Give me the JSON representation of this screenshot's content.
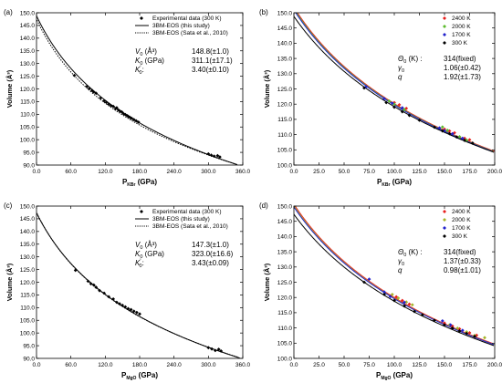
{
  "chart_data": [
    {
      "panel_label": "(a)",
      "type": "scatter",
      "xlabel": {
        "main": "P",
        "sub": "KBr",
        "unit": " (GPa)"
      },
      "ylabel": "Volume (Å³)",
      "xlim": [
        0,
        360
      ],
      "ylim": [
        90,
        150
      ],
      "xticks": [
        0,
        60,
        120,
        180,
        240,
        300,
        360
      ],
      "xtick_labels": [
        "0.0",
        "60.0",
        "120.0",
        "180.0",
        "240.0",
        "300.0",
        "360.0"
      ],
      "yticks": [
        90,
        95,
        100,
        105,
        110,
        115,
        120,
        125,
        130,
        135,
        140,
        145,
        150
      ],
      "ytick_labels": [
        "90.0",
        "95.0",
        "100.0",
        "105.0",
        "110.0",
        "115.0",
        "120.0",
        "125.0",
        "130.0",
        "135.0",
        "140.0",
        "145.0",
        "150.0"
      ],
      "legend": {
        "position": "top-right",
        "entries": [
          {
            "style": "diamond",
            "label": "Experimental data (300 K)"
          },
          {
            "style": "solid",
            "label": "3BM-EOS (this study)"
          },
          {
            "style": "dotted",
            "label": "3BM-EOS (Sata et al., 2010)"
          }
        ]
      },
      "params": [
        {
          "name": "V",
          "sub": "0",
          "sup": "",
          "unit": " (Å³)",
          "value": "148.8(±1.0)"
        },
        {
          "name": "K",
          "sub": "0",
          "sup": "",
          "unit": " (GPa)",
          "value": "311.1(±17.1)"
        },
        {
          "name": "K",
          "sub": "0",
          "sup": "'",
          "unit": "",
          "value": "3.40(±0.10)"
        }
      ],
      "curves": [
        {
          "style": "solid",
          "color": "#000000",
          "V0": 148.8,
          "K0": 311.1,
          "K1": 3.4,
          "xmax": 355
        },
        {
          "style": "dotted",
          "color": "#000000",
          "V0": 147.5,
          "K0": 300,
          "K1": 3.6,
          "xmax": 355
        }
      ],
      "series": [
        {
          "marker": "diamond",
          "color": "#000000",
          "x": [
            66,
            88,
            92,
            97,
            100,
            104,
            112,
            118,
            122,
            126,
            130,
            134,
            138,
            140,
            143,
            146,
            149,
            152,
            155,
            158,
            160,
            163,
            166,
            170,
            174,
            178,
            300,
            305,
            310,
            316,
            320
          ],
          "y": [
            125.3,
            121.0,
            120.1,
            119.4,
            118.8,
            118.3,
            116.4,
            115.3,
            114.7,
            114.0,
            113.4,
            113.1,
            112.2,
            112.6,
            111.7,
            111.2,
            110.9,
            110.2,
            109.9,
            109.5,
            109.2,
            108.8,
            108.4,
            107.9,
            107.4,
            106.9,
            94.4,
            93.9,
            93.5,
            93.7,
            93.2
          ]
        }
      ]
    },
    {
      "panel_label": "(b)",
      "type": "scatter",
      "xlabel": {
        "main": "P",
        "sub": "KBr",
        "unit": " (GPa)"
      },
      "ylabel": "Volume (Å³)",
      "xlim": [
        0,
        200
      ],
      "ylim": [
        100,
        150
      ],
      "xticks": [
        0,
        25,
        50,
        75,
        100,
        125,
        150,
        175,
        200
      ],
      "xtick_labels": [
        "0.0",
        "25.0",
        "50.0",
        "75.0",
        "100.0",
        "125.0",
        "150.0",
        "175.0",
        "200.0"
      ],
      "yticks": [
        100,
        105,
        110,
        115,
        120,
        125,
        130,
        135,
        140,
        145,
        150
      ],
      "ytick_labels": [
        "100.0",
        "105.0",
        "110.0",
        "115.0",
        "120.0",
        "125.0",
        "130.0",
        "135.0",
        "140.0",
        "145.0",
        "150.0"
      ],
      "legend": {
        "position": "top-right",
        "entries": [
          {
            "style": "diamond",
            "color": "#e8201e",
            "label": "2400 K"
          },
          {
            "style": "diamond",
            "color": "#5dbb2e",
            "label": "2000 K"
          },
          {
            "style": "diamond",
            "color": "#2222cc",
            "label": "1700 K"
          },
          {
            "style": "diamond",
            "color": "#000000",
            "label": "300 K"
          }
        ]
      },
      "params": [
        {
          "name": "Θ",
          "sub": "0",
          "sup": "",
          "unit": " (K) :",
          "value": "314(fixed)"
        },
        {
          "name": "γ",
          "sub": "0",
          "sup": "",
          "unit": "",
          "value": "1.06(±0.42)"
        },
        {
          "name": "q",
          "sub": "",
          "sup": "",
          "unit": "",
          "value": "1.92(±1.73)"
        }
      ],
      "curves": [
        {
          "style": "solid",
          "color": "#e8201e",
          "V0": 151.8,
          "K0": 290,
          "K1": 3.4,
          "xmax": 200
        },
        {
          "style": "solid",
          "color": "#5dbb2e",
          "V0": 151.3,
          "K0": 292,
          "K1": 3.4,
          "xmax": 200
        },
        {
          "style": "solid",
          "color": "#2222cc",
          "V0": 150.9,
          "K0": 294,
          "K1": 3.4,
          "xmax": 200
        },
        {
          "style": "solid",
          "color": "#000000",
          "V0": 148.8,
          "K0": 311.1,
          "K1": 3.4,
          "xmax": 200
        }
      ],
      "series": [
        {
          "name": "2400 K",
          "marker": "diamond",
          "color": "#e8201e",
          "x": [
            100,
            105,
            112,
            150,
            155,
            160,
            170,
            175
          ],
          "y": [
            120.5,
            119.8,
            118.6,
            111.8,
            111.2,
            110.6,
            108.8,
            108.3
          ]
        },
        {
          "name": "2000 K",
          "marker": "diamond",
          "color": "#5dbb2e",
          "x": [
            95,
            100,
            110,
            148,
            153,
            165,
            172
          ],
          "y": [
            121.0,
            120.0,
            118.2,
            112.5,
            111.4,
            109.3,
            108.2
          ]
        },
        {
          "name": "1700 K",
          "marker": "diamond",
          "color": "#2222cc",
          "x": [
            72,
            90,
            98,
            108,
            145,
            150,
            158,
            168
          ],
          "y": [
            125.7,
            121.8,
            120.3,
            118.8,
            112.2,
            111.3,
            110.3,
            108.8
          ]
        },
        {
          "name": "300 K",
          "marker": "diamond",
          "color": "#000000",
          "x": [
            70,
            92,
            100,
            108,
            115,
            125,
            140,
            148,
            155,
            162,
            170,
            178
          ],
          "y": [
            125.3,
            120.5,
            119.0,
            117.5,
            116.3,
            114.7,
            112.4,
            111.2,
            110.3,
            109.2,
            108.1,
            107.2
          ]
        }
      ]
    },
    {
      "panel_label": "(c)",
      "type": "scatter",
      "xlabel": {
        "main": "P",
        "sub": "MgO",
        "unit": " (GPa)"
      },
      "ylabel": "Volume (Å³)",
      "xlim": [
        0,
        360
      ],
      "ylim": [
        90,
        150
      ],
      "xticks": [
        0,
        60,
        120,
        180,
        240,
        300,
        360
      ],
      "xtick_labels": [
        "0.0",
        "60.0",
        "120.0",
        "180.0",
        "240.0",
        "300.0",
        "360.0"
      ],
      "yticks": [
        90,
        95,
        100,
        105,
        110,
        115,
        120,
        125,
        130,
        135,
        140,
        145,
        150
      ],
      "ytick_labels": [
        "90.0",
        "95.0",
        "100.0",
        "105.0",
        "110.0",
        "115.0",
        "120.0",
        "125.0",
        "130.0",
        "135.0",
        "140.0",
        "145.0",
        "150.0"
      ],
      "legend": {
        "position": "top-right",
        "entries": [
          {
            "style": "diamond",
            "label": "Experimental data (300 K)"
          },
          {
            "style": "solid",
            "label": "3BM-EOS (this study)"
          },
          {
            "style": "dotted",
            "label": "3BM-EOS (Sata et al., 2010)"
          }
        ]
      },
      "params": [
        {
          "name": "V",
          "sub": "0",
          "sup": "",
          "unit": " (Å³)",
          "value": "147.3(±1.0)"
        },
        {
          "name": "K",
          "sub": "0",
          "sup": "",
          "unit": " (GPa)",
          "value": "323.0(±16.6)"
        },
        {
          "name": "K",
          "sub": "0",
          "sup": "'",
          "unit": "",
          "value": "3.43(±0.09)"
        }
      ],
      "curves": [
        {
          "style": "solid",
          "color": "#000000",
          "V0": 147.3,
          "K0": 323.0,
          "K1": 3.43,
          "xmax": 355
        },
        {
          "style": "dotted",
          "color": "#000000",
          "V0": 147.5,
          "K0": 315,
          "K1": 3.5,
          "xmax": 355
        }
      ],
      "series": [
        {
          "marker": "diamond",
          "color": "#000000",
          "x": [
            68,
            90,
            95,
            100,
            104,
            110,
            118,
            126,
            134,
            140,
            145,
            150,
            155,
            160,
            165,
            170,
            175,
            180,
            300,
            306,
            312,
            318,
            322
          ],
          "y": [
            124.7,
            120.4,
            119.4,
            118.9,
            118.0,
            116.7,
            115.7,
            114.3,
            113.4,
            112.1,
            111.5,
            110.9,
            110.3,
            109.6,
            109.2,
            108.6,
            108.1,
            107.5,
            94.2,
            93.7,
            93.1,
            93.6,
            92.9
          ]
        }
      ]
    },
    {
      "panel_label": "(d)",
      "type": "scatter",
      "xlabel": {
        "main": "P",
        "sub": "MgO",
        "unit": " (GPa)"
      },
      "ylabel": "Volume (Å³)",
      "xlim": [
        0,
        200
      ],
      "ylim": [
        100,
        150
      ],
      "xticks": [
        0,
        25,
        50,
        75,
        100,
        125,
        150,
        175,
        200
      ],
      "xtick_labels": [
        "0.0",
        "25.0",
        "50.0",
        "75.0",
        "100.0",
        "125.0",
        "150.0",
        "175.0",
        "200.0"
      ],
      "yticks": [
        100,
        105,
        110,
        115,
        120,
        125,
        130,
        135,
        140,
        145,
        150
      ],
      "ytick_labels": [
        "100.0",
        "105.0",
        "110.0",
        "115.0",
        "120.0",
        "125.0",
        "130.0",
        "135.0",
        "140.0",
        "145.0",
        "150.0"
      ],
      "legend": {
        "position": "top-right",
        "entries": [
          {
            "style": "diamond",
            "color": "#e8201e",
            "label": "2400 K"
          },
          {
            "style": "diamond",
            "color": "#a6b52a",
            "label": "2000 K"
          },
          {
            "style": "diamond",
            "color": "#2222cc",
            "label": "1700 K"
          },
          {
            "style": "diamond",
            "color": "#000000",
            "label": "300 K"
          }
        ]
      },
      "params": [
        {
          "name": "Θ",
          "sub": "0",
          "sup": "",
          "unit": " (K) :",
          "value": "314(fixed)"
        },
        {
          "name": "γ",
          "sub": "0",
          "sup": "",
          "unit": "",
          "value": "1.37(±0.33)"
        },
        {
          "name": "q",
          "sub": "",
          "sup": "",
          "unit": "",
          "value": "0.98(±1.01)"
        }
      ],
      "curves": [
        {
          "style": "solid",
          "color": "#e8201e",
          "V0": 150.6,
          "K0": 300,
          "K1": 3.43,
          "xmax": 200
        },
        {
          "style": "solid",
          "color": "#a6b52a",
          "V0": 150.1,
          "K0": 302,
          "K1": 3.43,
          "xmax": 200
        },
        {
          "style": "solid",
          "color": "#2222cc",
          "V0": 149.7,
          "K0": 305,
          "K1": 3.43,
          "xmax": 200
        },
        {
          "style": "solid",
          "color": "#000000",
          "V0": 147.3,
          "K0": 323.0,
          "K1": 3.43,
          "xmax": 200
        }
      ],
      "series": [
        {
          "name": "2400 K",
          "marker": "diamond",
          "color": "#e8201e",
          "x": [
            102,
            108,
            115,
            150,
            158,
            165,
            175,
            182
          ],
          "y": [
            120.2,
            119.0,
            117.8,
            111.6,
            110.6,
            109.7,
            108.4,
            107.6
          ]
        },
        {
          "name": "2000 K",
          "marker": "diamond",
          "color": "#a6b52a",
          "x": [
            98,
            104,
            112,
            118,
            155,
            163,
            172,
            180,
            190
          ],
          "y": [
            121.0,
            119.8,
            118.5,
            117.6,
            111.0,
            109.9,
            108.7,
            107.5,
            106.8
          ]
        },
        {
          "name": "1700 K",
          "marker": "diamond",
          "color": "#2222cc",
          "x": [
            75,
            90,
            96,
            110,
            148,
            156,
            168
          ],
          "y": [
            126.0,
            121.8,
            120.3,
            118.4,
            112.3,
            111.0,
            109.2
          ]
        },
        {
          "name": "300 K",
          "marker": "diamond",
          "color": "#000000",
          "x": [
            70,
            90,
            100,
            110,
            120,
            128,
            140,
            150,
            158,
            165,
            172,
            180
          ],
          "y": [
            125.0,
            121.0,
            119.0,
            117.2,
            115.4,
            114.3,
            112.5,
            111.0,
            109.9,
            109.0,
            108.2,
            107.2
          ]
        }
      ]
    }
  ]
}
